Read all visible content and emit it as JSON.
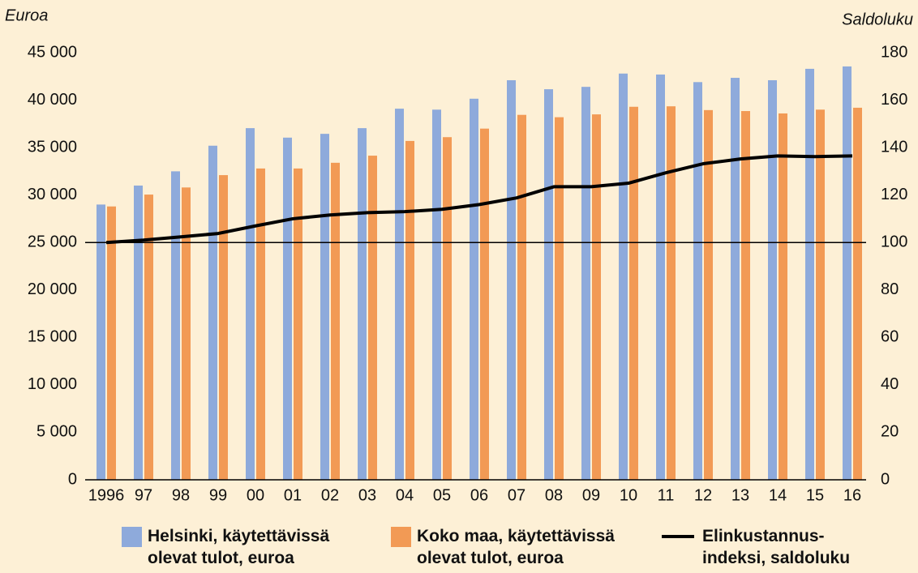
{
  "chart_data": {
    "type": "bar_line",
    "ylabel": "Euroa",
    "y2label": "Saldoluku",
    "categories": [
      "1996",
      "97",
      "98",
      "99",
      "00",
      "01",
      "02",
      "03",
      "04",
      "05",
      "06",
      "07",
      "08",
      "09",
      "10",
      "11",
      "12",
      "13",
      "14",
      "15",
      "16"
    ],
    "series": [
      {
        "name": "Helsinki, käytettävissä\nolevat tulot, euroa",
        "type": "bar",
        "color": "#8eaadb",
        "values": [
          29000,
          31000,
          32500,
          35200,
          37050,
          36050,
          36450,
          37050,
          39100,
          39000,
          40150,
          42100,
          41150,
          41400,
          42800,
          42700,
          41900,
          42350,
          42100,
          43300,
          43550
        ]
      },
      {
        "name": "Koko maa, käytettävissä\nolevat tulot, euroa",
        "type": "bar",
        "color": "#f29a55",
        "values": [
          28800,
          30050,
          30800,
          32100,
          32800,
          32800,
          33400,
          34150,
          35700,
          36100,
          37000,
          38450,
          38200,
          38500,
          39300,
          39350,
          38950,
          38850,
          38600,
          39000,
          39200
        ]
      },
      {
        "name": "Elinkustannus-\nindeksi, saldoluku",
        "type": "line",
        "axis": "y2",
        "color": "#000000",
        "values": [
          100,
          101,
          102.4,
          103.8,
          107,
          110,
          111.6,
          112.6,
          113,
          114,
          116,
          118.8,
          123.5,
          123.5,
          125,
          129.4,
          133.2,
          135.2,
          136.5,
          136.2,
          136.5
        ]
      }
    ],
    "ylim": [
      0,
      45000
    ],
    "yticks": [
      0,
      {
        "value": 5000,
        "label": "5 000"
      },
      {
        "value": 10000,
        "label": "10 000"
      },
      {
        "value": 15000,
        "label": "15 000"
      },
      {
        "value": 20000,
        "label": "20 000"
      },
      {
        "value": 25000,
        "label": "25 000"
      },
      {
        "value": 30000,
        "label": "30 000"
      },
      {
        "value": 35000,
        "label": "35 000"
      },
      {
        "value": 40000,
        "label": "40 000"
      },
      {
        "value": 45000,
        "label": "45 000"
      }
    ],
    "y2lim": [
      0,
      180
    ],
    "y2ticks": [
      0,
      20,
      40,
      60,
      80,
      100,
      120,
      140,
      160,
      180
    ],
    "reference_line_y2": 100,
    "grid": false
  }
}
